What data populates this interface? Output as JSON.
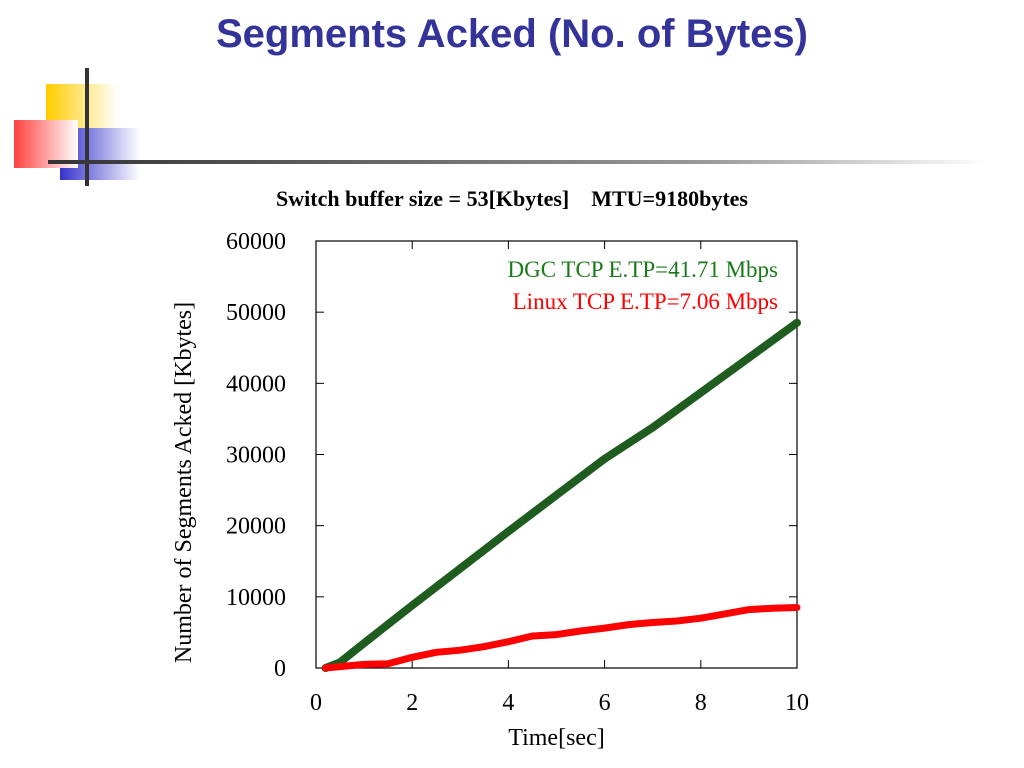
{
  "slide": {
    "title": "Segments Acked (No. of Bytes)"
  },
  "colors": {
    "title": "#333399",
    "deco_yellow": "#ffcc00",
    "deco_red": "#ff4040",
    "deco_blue": "#3333cc",
    "rule": "#333333",
    "dgc": "#1f5c1f",
    "linux": "#ff0000",
    "dgc_label": "#1a7a1a",
    "linux_label": "#ff0000"
  },
  "chart_data": {
    "type": "line",
    "title": "Switch buffer size = 53[Kbytes]    MTU=9180bytes",
    "xlabel": "Time[sec]",
    "ylabel": "Number of Segments Acked [Kbytes]",
    "xlim": [
      0,
      10
    ],
    "ylim": [
      0,
      60000
    ],
    "xticks": [
      0,
      2,
      4,
      6,
      8,
      10
    ],
    "yticks": [
      0,
      10000,
      20000,
      30000,
      40000,
      50000,
      60000
    ],
    "grid": false,
    "legend_position": "top-right",
    "series": [
      {
        "name": "DGC TCP E.TP=41.71 Mbps",
        "color": "#1f5c1f",
        "x": [
          0.2,
          0.5,
          1,
          2,
          3,
          4,
          5,
          6,
          7,
          8,
          9,
          10
        ],
        "y": [
          0,
          800,
          3500,
          8800,
          14000,
          19200,
          24300,
          29400,
          33800,
          38700,
          43600,
          48500
        ]
      },
      {
        "name": "Linux TCP E.TP=7.06 Mbps",
        "color": "#ff0000",
        "x": [
          0.2,
          0.5,
          1,
          1.5,
          2,
          2.5,
          3,
          3.5,
          4,
          4.5,
          5,
          5.5,
          6,
          6.5,
          7,
          7.5,
          8,
          8.5,
          9,
          9.5,
          10
        ],
        "y": [
          0,
          200,
          500,
          600,
          1500,
          2200,
          2500,
          3000,
          3700,
          4500,
          4700,
          5200,
          5600,
          6100,
          6400,
          6600,
          7000,
          7600,
          8200,
          8400,
          8500
        ]
      }
    ]
  }
}
